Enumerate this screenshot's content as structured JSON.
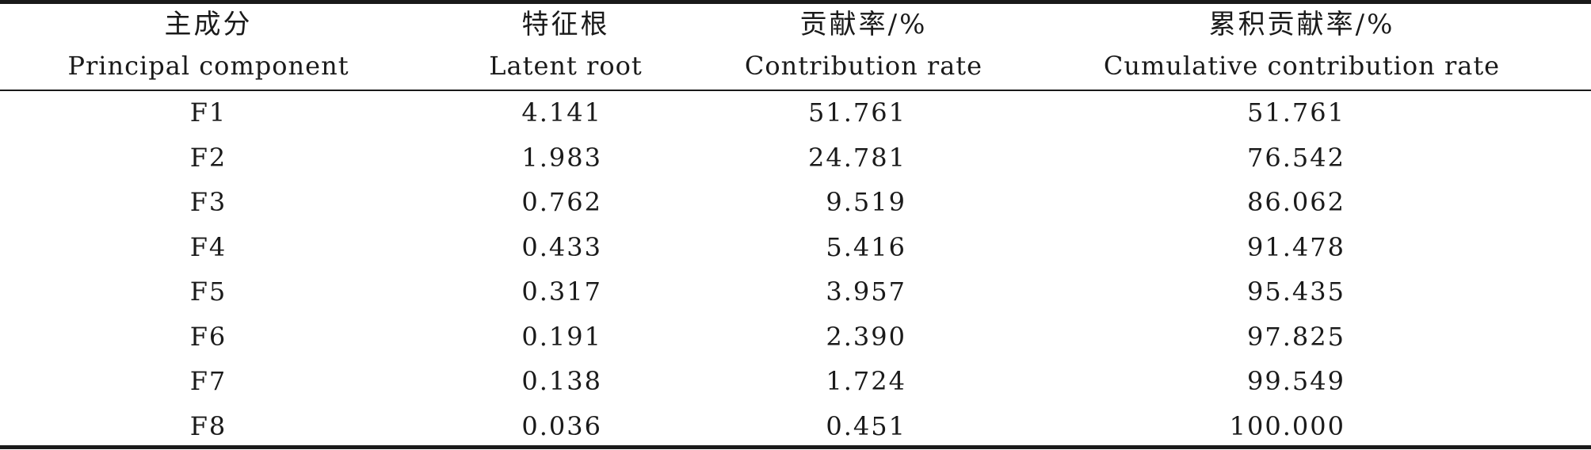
{
  "table": {
    "headers": [
      {
        "zh": "主成分",
        "en": "Principal component"
      },
      {
        "zh": "特征根",
        "en": "Latent root"
      },
      {
        "zh": "贡献率/%",
        "en": "Contribution rate"
      },
      {
        "zh": "累积贡献率/%",
        "en": "Cumulative contribution rate"
      }
    ],
    "rows": [
      [
        "F1",
        "4.141",
        "51.761",
        "51.761"
      ],
      [
        "F2",
        "1.983",
        "24.781",
        "76.542"
      ],
      [
        "F3",
        "0.762",
        "9.519",
        "86.062"
      ],
      [
        "F4",
        "0.433",
        "5.416",
        "91.478"
      ],
      [
        "F5",
        "0.317",
        "3.957",
        "95.435"
      ],
      [
        "F6",
        "0.191",
        "2.390",
        "97.825"
      ],
      [
        "F7",
        "0.138",
        "1.724",
        "99.549"
      ],
      [
        "F8",
        "0.036",
        "0.451",
        "100.000"
      ]
    ]
  }
}
